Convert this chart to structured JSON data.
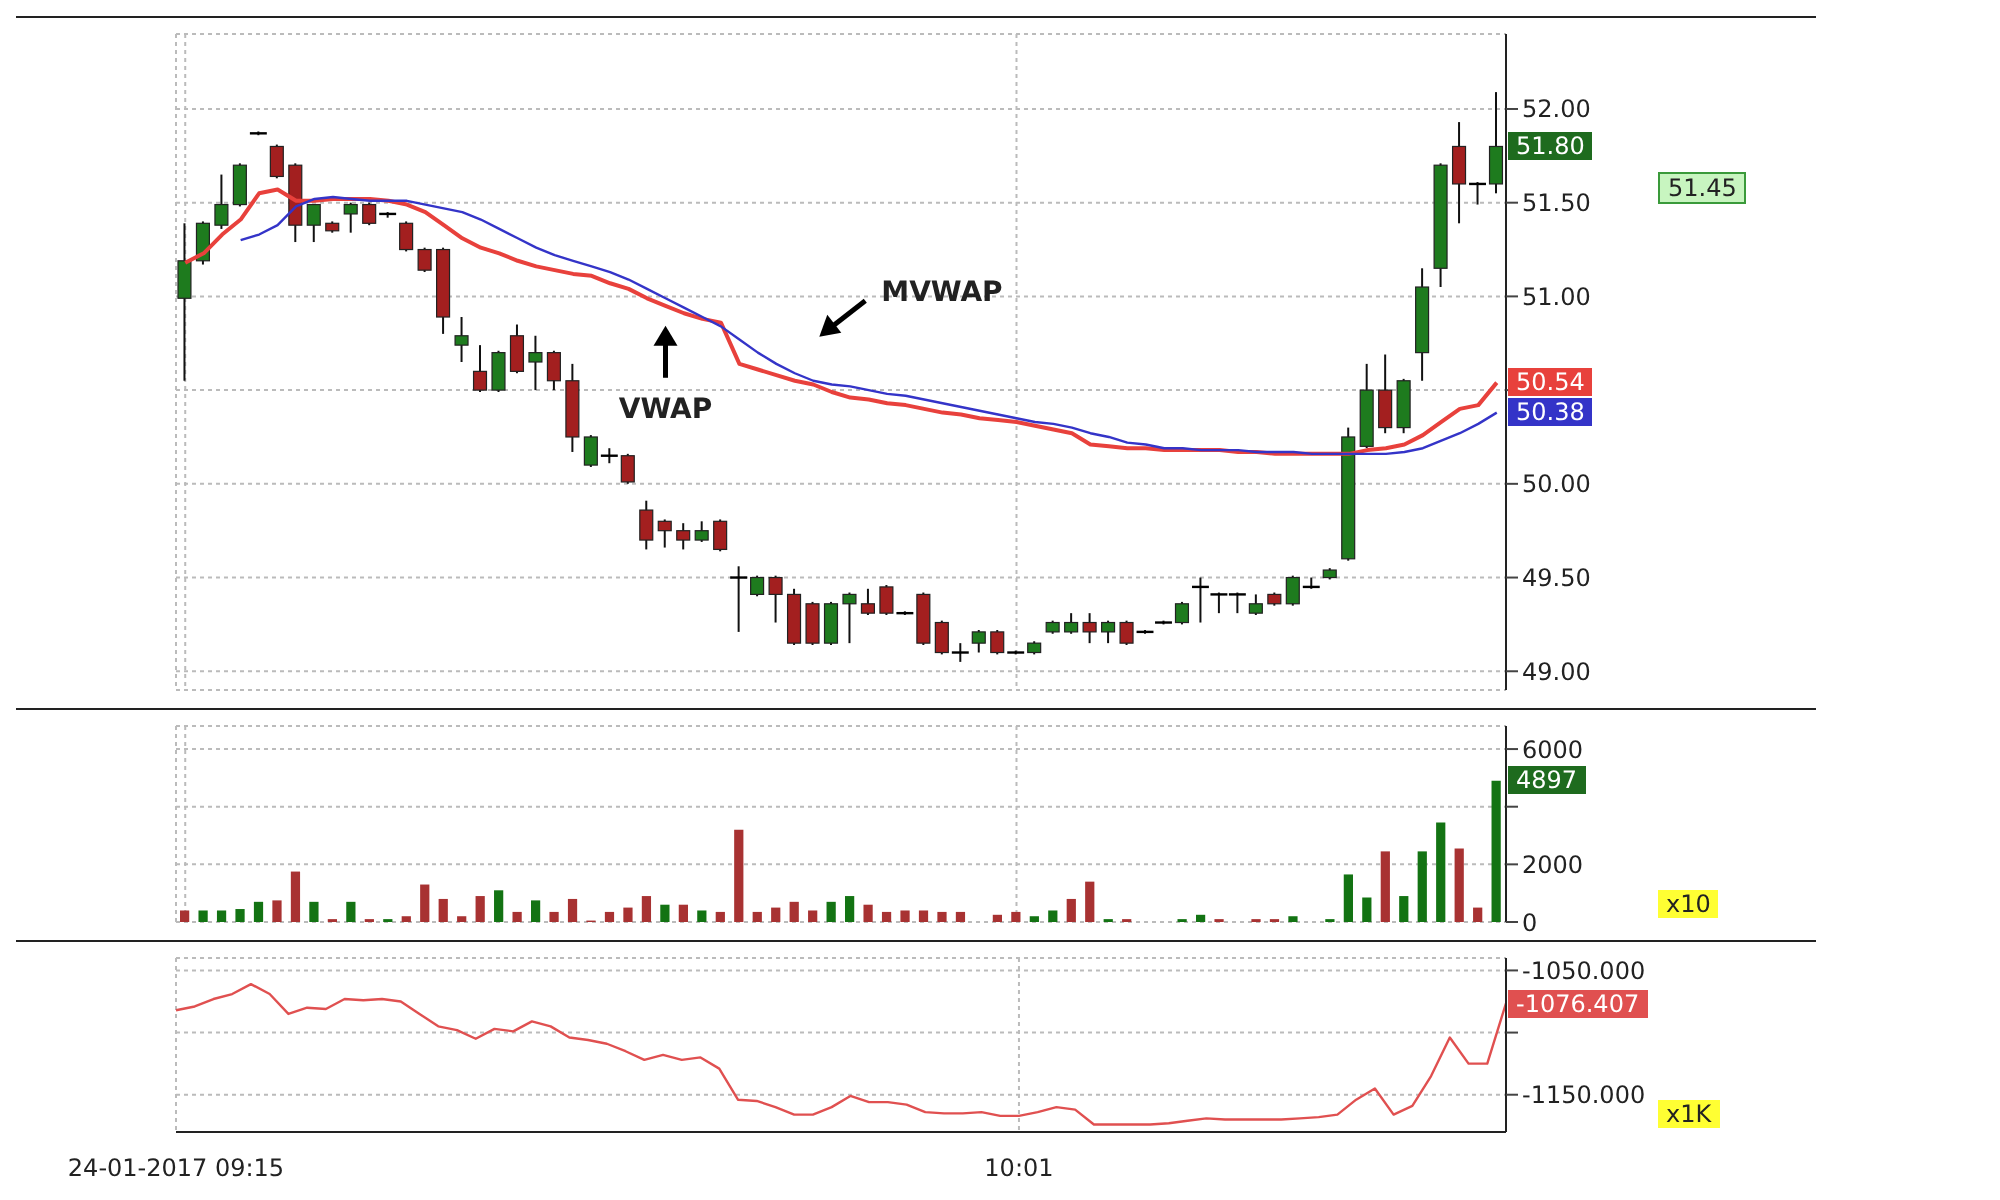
{
  "chart_data": [
    {
      "type": "candlestick",
      "categories": [
        null,
        null,
        null,
        null,
        null,
        null,
        null,
        null,
        null,
        null,
        null,
        null,
        null,
        null,
        null,
        null,
        null,
        null,
        null,
        null,
        null,
        null,
        null,
        null,
        null,
        null,
        null,
        null,
        null,
        null,
        null,
        null,
        null,
        null,
        null,
        null,
        null,
        null,
        null,
        null,
        null,
        null,
        null,
        null,
        null,
        null,
        null,
        null,
        null,
        null,
        null,
        null,
        null,
        null,
        null,
        null,
        null,
        null,
        null,
        null,
        null,
        null,
        null,
        null,
        null,
        null,
        null,
        null,
        null,
        null,
        null,
        null
      ],
      "ohlc": [
        [
          50.99,
          51.39,
          50.55,
          51.19
        ],
        [
          51.19,
          51.4,
          51.17,
          51.39
        ],
        [
          51.38,
          51.65,
          51.36,
          51.49
        ],
        [
          51.49,
          51.71,
          51.48,
          51.7
        ],
        [
          51.87,
          51.88,
          51.86,
          51.87
        ],
        [
          51.8,
          51.81,
          51.63,
          51.64
        ],
        [
          51.7,
          51.71,
          51.29,
          51.38
        ],
        [
          51.38,
          51.49,
          51.29,
          51.49
        ],
        [
          51.39,
          51.4,
          51.34,
          51.35
        ],
        [
          51.44,
          51.5,
          51.34,
          51.49
        ],
        [
          51.49,
          51.5,
          51.38,
          51.39
        ],
        [
          51.44,
          51.45,
          51.42,
          51.44
        ],
        [
          51.39,
          51.4,
          51.24,
          51.25
        ],
        [
          51.25,
          51.26,
          51.13,
          51.14
        ],
        [
          51.25,
          51.26,
          50.8,
          50.89
        ],
        [
          50.74,
          50.89,
          50.65,
          50.79
        ],
        [
          50.6,
          50.74,
          50.49,
          50.5
        ],
        [
          50.5,
          50.71,
          50.49,
          50.7
        ],
        [
          50.79,
          50.85,
          50.59,
          50.6
        ],
        [
          50.65,
          50.79,
          50.5,
          50.7
        ],
        [
          50.7,
          50.71,
          50.5,
          50.55
        ],
        [
          50.55,
          50.64,
          50.17,
          50.25
        ],
        [
          50.1,
          50.26,
          50.09,
          50.25
        ],
        [
          50.15,
          50.19,
          50.11,
          50.15
        ],
        [
          50.15,
          50.16,
          50.0,
          50.01
        ],
        [
          49.86,
          49.91,
          49.65,
          49.7
        ],
        [
          49.8,
          49.81,
          49.66,
          49.75
        ],
        [
          49.75,
          49.79,
          49.65,
          49.7
        ],
        [
          49.7,
          49.8,
          49.69,
          49.75
        ],
        [
          49.8,
          49.81,
          49.64,
          49.65
        ],
        [
          49.5,
          49.56,
          49.21,
          49.5
        ],
        [
          49.41,
          49.51,
          49.4,
          49.5
        ],
        [
          49.5,
          49.51,
          49.26,
          49.41
        ],
        [
          49.41,
          49.44,
          49.14,
          49.15
        ],
        [
          49.36,
          49.37,
          49.14,
          49.15
        ],
        [
          49.15,
          49.37,
          49.14,
          49.36
        ],
        [
          49.36,
          49.42,
          49.15,
          49.41
        ],
        [
          49.36,
          49.44,
          49.3,
          49.31
        ],
        [
          49.45,
          49.46,
          49.3,
          49.31
        ],
        [
          49.31,
          49.32,
          49.3,
          49.31
        ],
        [
          49.41,
          49.42,
          49.14,
          49.15
        ],
        [
          49.26,
          49.27,
          49.09,
          49.1
        ],
        [
          49.1,
          49.15,
          49.05,
          49.1
        ],
        [
          49.15,
          49.22,
          49.1,
          49.21
        ],
        [
          49.21,
          49.22,
          49.09,
          49.1
        ],
        [
          49.1,
          49.11,
          49.09,
          49.1
        ],
        [
          49.1,
          49.16,
          49.09,
          49.15
        ],
        [
          49.21,
          49.27,
          49.2,
          49.26
        ],
        [
          49.21,
          49.31,
          49.2,
          49.26
        ],
        [
          49.26,
          49.31,
          49.15,
          49.21
        ],
        [
          49.21,
          49.27,
          49.15,
          49.26
        ],
        [
          49.26,
          49.27,
          49.14,
          49.15
        ],
        [
          49.21,
          49.22,
          49.2,
          49.21
        ],
        [
          49.26,
          49.27,
          49.25,
          49.26
        ],
        [
          49.26,
          49.37,
          49.25,
          49.36
        ],
        [
          49.45,
          49.5,
          49.26,
          49.45
        ],
        [
          49.41,
          49.42,
          49.31,
          49.41
        ],
        [
          49.41,
          49.42,
          49.31,
          49.41
        ],
        [
          49.31,
          49.41,
          49.3,
          49.36
        ],
        [
          49.41,
          49.42,
          49.35,
          49.36
        ],
        [
          49.36,
          49.51,
          49.35,
          49.5
        ],
        [
          49.45,
          49.5,
          49.44,
          49.45
        ],
        [
          49.5,
          49.55,
          49.49,
          49.54
        ],
        [
          49.6,
          50.3,
          49.59,
          50.25
        ],
        [
          50.2,
          50.64,
          50.19,
          50.5
        ],
        [
          50.5,
          50.69,
          50.27,
          50.3
        ],
        [
          50.3,
          50.56,
          50.27,
          50.55
        ],
        [
          50.7,
          51.15,
          50.55,
          51.05
        ],
        [
          51.15,
          51.71,
          51.05,
          51.7
        ],
        [
          51.8,
          51.93,
          51.39,
          51.6
        ],
        [
          51.6,
          51.61,
          51.49,
          51.6
        ],
        [
          51.6,
          52.09,
          51.55,
          51.8
        ]
      ],
      "colors": [
        "#1e7b1e",
        "#1e7b1e",
        "#1e7b1e",
        "#1e7b1e",
        "#000000",
        "#a31f1f",
        "#a31f1f",
        "#1e7b1e",
        "#a31f1f",
        "#1e7b1e",
        "#a31f1f",
        "#000000",
        "#a31f1f",
        "#a31f1f",
        "#a31f1f",
        "#1e7b1e",
        "#a31f1f",
        "#1e7b1e",
        "#a31f1f",
        "#1e7b1e",
        "#a31f1f",
        "#a31f1f",
        "#1e7b1e",
        "#000000",
        "#a31f1f",
        "#a31f1f",
        "#a31f1f",
        "#a31f1f",
        "#1e7b1e",
        "#a31f1f",
        "#000000",
        "#1e7b1e",
        "#a31f1f",
        "#a31f1f",
        "#a31f1f",
        "#1e7b1e",
        "#1e7b1e",
        "#a31f1f",
        "#a31f1f",
        "#000000",
        "#a31f1f",
        "#a31f1f",
        "#000000",
        "#1e7b1e",
        "#a31f1f",
        "#000000",
        "#1e7b1e",
        "#1e7b1e",
        "#1e7b1e",
        "#a31f1f",
        "#1e7b1e",
        "#a31f1f",
        "#000000",
        "#000000",
        "#1e7b1e",
        "#000000",
        "#000000",
        "#000000",
        "#1e7b1e",
        "#a31f1f",
        "#1e7b1e",
        "#000000",
        "#1e7b1e",
        "#1e7b1e",
        "#1e7b1e",
        "#a31f1f",
        "#1e7b1e",
        "#1e7b1e",
        "#1e7b1e",
        "#a31f1f",
        "#000000",
        "#1e7b1e"
      ],
      "series": [
        {
          "type": "line",
          "name": "VWAP",
          "color": "#e8413c",
          "values": [
            51.18,
            51.23,
            51.33,
            51.41,
            51.55,
            51.57,
            51.51,
            51.51,
            51.52,
            51.52,
            51.52,
            51.51,
            51.49,
            51.45,
            51.38,
            51.31,
            51.26,
            51.23,
            51.19,
            51.16,
            51.14,
            51.12,
            51.11,
            51.07,
            51.04,
            50.99,
            50.95,
            50.91,
            50.88,
            50.86,
            50.64,
            50.61,
            50.58,
            50.55,
            50.53,
            50.49,
            50.46,
            50.45,
            50.43,
            50.42,
            50.4,
            50.38,
            50.37,
            50.35,
            50.34,
            50.33,
            50.31,
            50.29,
            50.27,
            50.21,
            50.2,
            50.19,
            50.19,
            50.18,
            50.18,
            50.18,
            50.18,
            50.17,
            50.17,
            50.16,
            50.16,
            50.16,
            50.16,
            50.16,
            50.18,
            50.19,
            50.21,
            50.26,
            50.33,
            50.4,
            50.42,
            50.54
          ],
          "value_labels": [
            null,
            null,
            null,
            null,
            null,
            null,
            null,
            null,
            null,
            null,
            null,
            null,
            null,
            null,
            null,
            null,
            null,
            null,
            null,
            null,
            null,
            null,
            null,
            null,
            null,
            null,
            null,
            null,
            null,
            null,
            null,
            null,
            null,
            null,
            null,
            null,
            null,
            null,
            null,
            null,
            null,
            null,
            null,
            null,
            null,
            null,
            null,
            null,
            null,
            null,
            null,
            null,
            null,
            null,
            null,
            null,
            null,
            null,
            null,
            null,
            null,
            null,
            null,
            null,
            null,
            null,
            null,
            null,
            null,
            null,
            null,
            "50.54"
          ]
        },
        {
          "type": "line",
          "name": "MVWAP",
          "color": "#3434c8",
          "values": [
            null,
            null,
            null,
            51.3,
            51.33,
            51.38,
            51.48,
            51.52,
            51.53,
            51.52,
            51.51,
            51.51,
            51.51,
            51.49,
            51.47,
            51.45,
            51.41,
            51.36,
            51.31,
            51.26,
            51.22,
            51.19,
            51.16,
            51.13,
            51.09,
            51.04,
            50.99,
            50.94,
            50.89,
            50.84,
            50.77,
            50.7,
            50.64,
            50.59,
            50.55,
            50.53,
            50.52,
            50.5,
            50.48,
            50.47,
            50.45,
            50.43,
            50.41,
            50.39,
            50.37,
            50.35,
            50.33,
            50.32,
            50.3,
            50.27,
            50.25,
            50.22,
            50.21,
            50.19,
            50.19,
            50.18,
            50.18,
            50.18,
            50.17,
            50.17,
            50.17,
            50.16,
            50.16,
            50.16,
            50.16,
            50.16,
            50.17,
            50.19,
            50.23,
            50.27,
            50.32,
            50.38
          ],
          "value_labels": [
            null,
            null,
            null,
            null,
            null,
            null,
            null,
            null,
            null,
            null,
            null,
            null,
            null,
            null,
            null,
            null,
            null,
            null,
            null,
            null,
            null,
            null,
            null,
            null,
            null,
            null,
            null,
            null,
            null,
            null,
            null,
            null,
            null,
            null,
            null,
            null,
            null,
            null,
            null,
            null,
            null,
            null,
            null,
            null,
            null,
            null,
            null,
            null,
            null,
            null,
            null,
            null,
            null,
            null,
            null,
            null,
            null,
            null,
            null,
            null,
            null,
            null,
            null,
            null,
            null,
            null,
            null,
            null,
            null,
            null,
            null,
            "50.38"
          ]
        }
      ],
      "ylim": [
        48.9,
        52.4
      ],
      "yticks": [
        {
          "value": 49,
          "label": "49.00"
        },
        {
          "value": 49.5,
          "label": "49.50"
        },
        {
          "value": 50,
          "label": "50.00"
        },
        {
          "value": 50.5,
          "label": null
        },
        {
          "value": 51,
          "label": "51.00"
        },
        {
          "value": 51.5,
          "label": "51.50"
        },
        {
          "value": 52,
          "label": "52.00"
        }
      ],
      "grid": true,
      "marker": "none",
      "tick_labels": "y",
      "value_labels": [
        null,
        null,
        null,
        null,
        null,
        null,
        null,
        null,
        null,
        null,
        null,
        null,
        null,
        null,
        null,
        null,
        null,
        null,
        null,
        null,
        null,
        null,
        null,
        null,
        null,
        null,
        null,
        null,
        null,
        null,
        null,
        null,
        null,
        null,
        null,
        null,
        null,
        null,
        null,
        null,
        null,
        null,
        null,
        null,
        null,
        null,
        null,
        null,
        null,
        null,
        null,
        null,
        null,
        null,
        null,
        null,
        null,
        null,
        null,
        null,
        null,
        null,
        null,
        null,
        null,
        null,
        null,
        null,
        null,
        null,
        null,
        "51.80"
      ],
      "annotations": [
        "51.45"
      ]
    },
    {
      "type": "bar",
      "categories": [
        null,
        null,
        null,
        null,
        null,
        null,
        null,
        null,
        null,
        null,
        null,
        null,
        null,
        null,
        null,
        null,
        null,
        null,
        null,
        null,
        null,
        null,
        null,
        null,
        null,
        null,
        null,
        null,
        null,
        null,
        null,
        null,
        null,
        null,
        null,
        null,
        null,
        null,
        null,
        null,
        null,
        null,
        null,
        null,
        null,
        null,
        null,
        null,
        null,
        null,
        null,
        null,
        null,
        null,
        null,
        null,
        null,
        null,
        null,
        null,
        null,
        null,
        null,
        null,
        null,
        null,
        null,
        null,
        null,
        null,
        null,
        null
      ],
      "values": [
        400,
        400,
        400,
        450,
        700,
        750,
        1750,
        700,
        100,
        700,
        100,
        100,
        200,
        1300,
        800,
        200,
        900,
        1100,
        350,
        750,
        350,
        800,
        50,
        350,
        500,
        900,
        600,
        600,
        400,
        350,
        3200,
        350,
        500,
        700,
        400,
        700,
        900,
        600,
        350,
        400,
        400,
        350,
        350,
        0,
        250,
        350,
        200,
        400,
        800,
        1400,
        100,
        100,
        0,
        0,
        100,
        250,
        100,
        0,
        100,
        100,
        200,
        0,
        100,
        1650,
        850,
        2450,
        900,
        2450,
        3450,
        2550,
        500,
        4897
      ],
      "colors": [
        "#a83232",
        "#137313",
        "#137313",
        "#137313",
        "#137313",
        "#a83232",
        "#a83232",
        "#137313",
        "#a83232",
        "#137313",
        "#a83232",
        "#137313",
        "#a83232",
        "#a83232",
        "#a83232",
        "#a83232",
        "#a83232",
        "#137313",
        "#a83232",
        "#137313",
        "#a83232",
        "#a83232",
        "#a83232",
        "#a83232",
        "#a83232",
        "#a83232",
        "#137313",
        "#a83232",
        "#137313",
        "#a83232",
        "#a83232",
        "#a83232",
        "#a83232",
        "#a83232",
        "#a83232",
        "#137313",
        "#137313",
        "#a83232",
        "#a83232",
        "#a83232",
        "#a83232",
        "#a83232",
        "#a83232",
        "#a83232",
        "#a83232",
        "#a83232",
        "#137313",
        "#137313",
        "#a83232",
        "#a83232",
        "#137313",
        "#a83232",
        "#a83232",
        "#a83232",
        "#137313",
        "#137313",
        "#a83232",
        "#a83232",
        "#a83232",
        "#a83232",
        "#137313",
        "#a83232",
        "#137313",
        "#137313",
        "#137313",
        "#a83232",
        "#137313",
        "#137313",
        "#137313",
        "#a83232",
        "#a83232",
        "#137313"
      ],
      "ylim": [
        0,
        6800
      ],
      "yticks": [
        0,
        2000,
        {
          "value": 4000,
          "label": null
        },
        6000
      ],
      "grid": true,
      "tick_labels": "y",
      "annotations": [
        "4897",
        "x10"
      ]
    },
    {
      "type": "line",
      "categories": [
        "24-01-2017 09:15",
        null,
        null,
        null,
        null,
        null,
        null,
        null,
        null,
        null,
        null,
        null,
        null,
        null,
        null,
        null,
        null,
        null,
        null,
        null,
        null,
        null,
        null,
        null,
        null,
        null,
        null,
        null,
        null,
        null,
        null,
        null,
        null,
        null,
        null,
        null,
        null,
        null,
        null,
        null,
        null,
        null,
        null,
        null,
        null,
        "10:01",
        null,
        null,
        null,
        null,
        null,
        null,
        null,
        null,
        null,
        null,
        null,
        null,
        null,
        null,
        null,
        null,
        null,
        null,
        null,
        null,
        null,
        null,
        null,
        null,
        null,
        null
      ],
      "series": [
        {
          "color": "#e05050",
          "values": [
            -1082,
            -1079,
            -1073,
            -1069,
            -1061,
            -1069,
            -1085,
            -1080,
            -1081,
            -1073,
            -1074,
            -1073,
            -1075,
            -1085,
            -1095,
            -1098,
            -1105,
            -1097,
            -1099,
            -1091,
            -1095,
            -1104,
            -1106,
            -1109,
            -1115,
            -1122,
            -1118,
            -1122,
            -1120,
            -1129,
            -1154,
            -1155,
            -1160,
            -1166,
            -1166,
            -1160,
            -1151,
            -1156,
            -1156,
            -1158,
            -1164,
            -1165,
            -1165,
            -1164,
            -1167,
            -1167,
            -1164,
            -1160,
            -1162,
            -1174,
            -1174,
            -1174,
            -1174,
            -1173,
            -1171,
            -1169,
            -1170,
            -1170,
            -1170,
            -1170,
            -1169,
            -1168,
            -1166,
            -1154,
            -1145,
            -1166,
            -1159,
            -1135,
            -1104,
            -1125,
            -1125,
            -1076.407
          ],
          "value_labels": [
            null,
            null,
            null,
            null,
            null,
            null,
            null,
            null,
            null,
            null,
            null,
            null,
            null,
            null,
            null,
            null,
            null,
            null,
            null,
            null,
            null,
            null,
            null,
            null,
            null,
            null,
            null,
            null,
            null,
            null,
            null,
            null,
            null,
            null,
            null,
            null,
            null,
            null,
            null,
            null,
            null,
            null,
            null,
            null,
            null,
            null,
            null,
            null,
            null,
            null,
            null,
            null,
            null,
            null,
            null,
            null,
            null,
            null,
            null,
            null,
            null,
            null,
            null,
            null,
            null,
            null,
            null,
            null,
            null,
            null,
            null,
            "-1076.407"
          ]
        }
      ],
      "ylim": [
        -1180,
        -1040
      ],
      "yticks": [
        {
          "value": -1150,
          "label": "-1150.000"
        },
        {
          "value": -1100,
          "label": null
        },
        {
          "value": -1050,
          "label": "-1050.000"
        }
      ],
      "grid": true,
      "marker": "none",
      "annotations": [
        "x1K"
      ]
    }
  ]
}
